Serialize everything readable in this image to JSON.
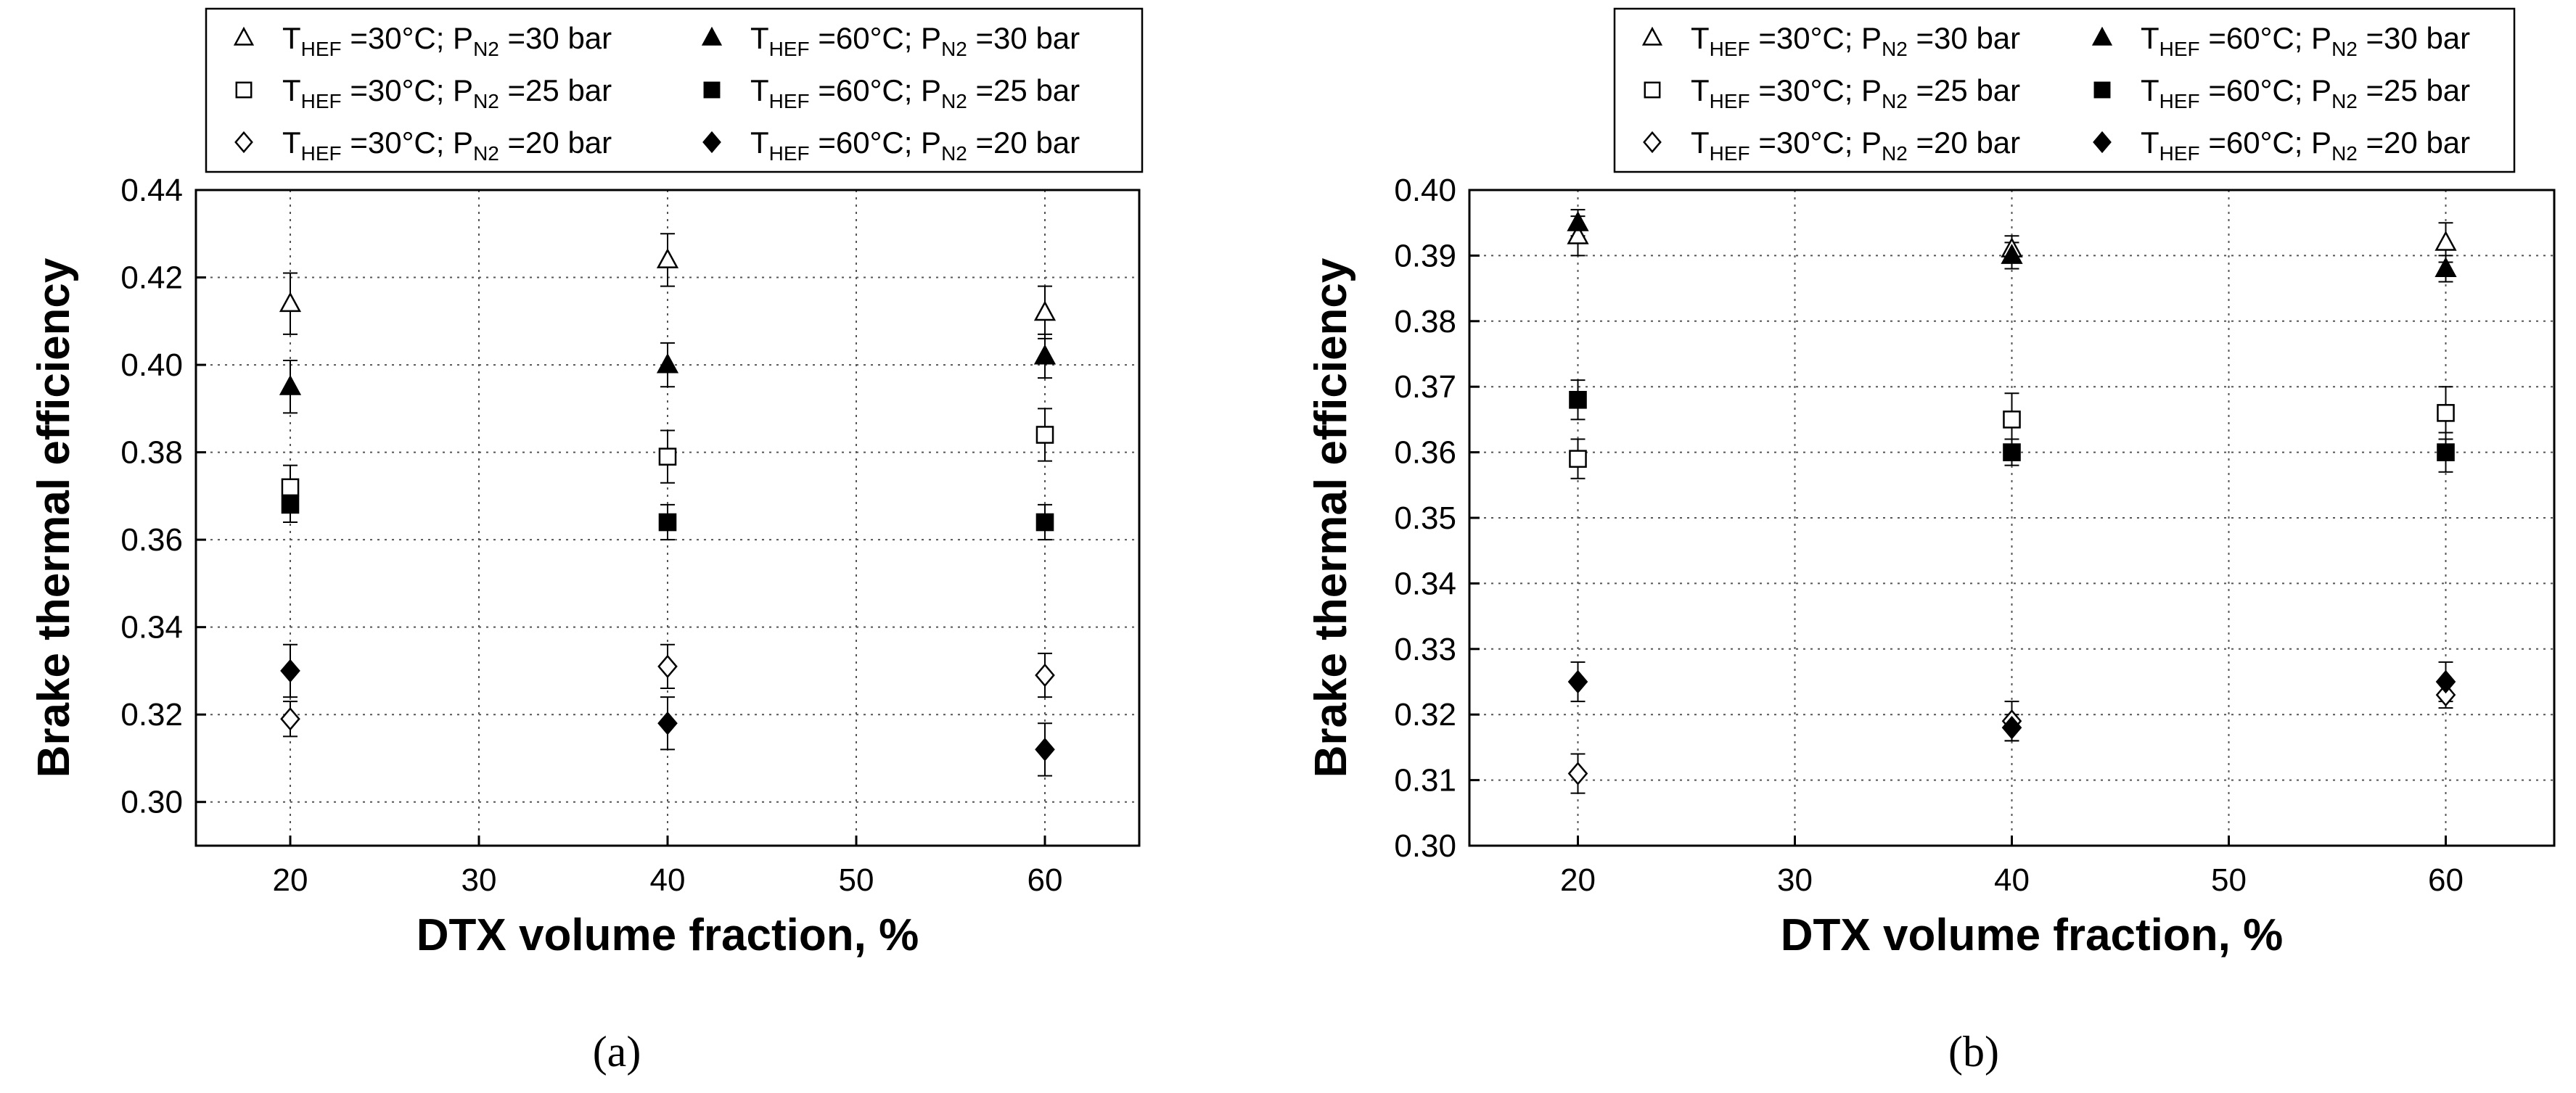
{
  "chart_data": [
    {
      "type": "scatter",
      "panel_label": "(a)",
      "xlabel": "DTX volume fraction, %",
      "ylabel": "Brake thermal efficiency",
      "xlim": [
        15,
        65
      ],
      "ylim": [
        0.29,
        0.44
      ],
      "xticks": [
        "20",
        "30",
        "40",
        "50",
        "60"
      ],
      "yticks": [
        "0.30",
        "0.32",
        "0.34",
        "0.36",
        "0.38",
        "0.40",
        "0.42",
        "0.44"
      ],
      "grid": true,
      "legend_position": "top",
      "x": [
        20,
        40,
        60
      ],
      "series": [
        {
          "name": "T_HEF =30°C; P_N2 =30 bar",
          "sub1": "HEF",
          "temp": "=30°C; P",
          "sub2": "N2",
          "pres": "=30 bar",
          "marker": "triangle",
          "filled": false,
          "values": [
            0.414,
            0.424,
            0.412
          ],
          "errors": [
            0.007,
            0.006,
            0.006
          ]
        },
        {
          "name": "T_HEF =60°C; P_N2 =30 bar",
          "sub1": "HEF",
          "temp": "=60°C; P",
          "sub2": "N2",
          "pres": "=30 bar",
          "marker": "triangle",
          "filled": true,
          "values": [
            0.395,
            0.4,
            0.402
          ],
          "errors": [
            0.006,
            0.005,
            0.005
          ]
        },
        {
          "name": "T_HEF =30°C; P_N2 =25 bar",
          "sub1": "HEF",
          "temp": "=30°C; P",
          "sub2": "N2",
          "pres": "=25 bar",
          "marker": "square",
          "filled": false,
          "values": [
            0.372,
            0.379,
            0.384
          ],
          "errors": [
            0.005,
            0.006,
            0.006
          ]
        },
        {
          "name": "T_HEF =60°C; P_N2 =25 bar",
          "sub1": "HEF",
          "temp": "=60°C; P",
          "sub2": "N2",
          "pres": "=25 bar",
          "marker": "square",
          "filled": true,
          "values": [
            0.368,
            0.364,
            0.364
          ],
          "errors": [
            0.004,
            0.004,
            0.004
          ]
        },
        {
          "name": "T_HEF =30°C; P_N2 =20 bar",
          "sub1": "HEF",
          "temp": "=30°C; P",
          "sub2": "N2",
          "pres": "=20 bar",
          "marker": "diamond",
          "filled": false,
          "values": [
            0.319,
            0.331,
            0.329
          ],
          "errors": [
            0.004,
            0.005,
            0.005
          ]
        },
        {
          "name": "T_HEF =60°C; P_N2 =20 bar",
          "sub1": "HEF",
          "temp": "=60°C; P",
          "sub2": "N2",
          "pres": "=20 bar",
          "marker": "diamond",
          "filled": true,
          "values": [
            0.33,
            0.318,
            0.312
          ],
          "errors": [
            0.006,
            0.006,
            0.006
          ]
        }
      ]
    },
    {
      "type": "scatter",
      "panel_label": "(b)",
      "xlabel": "DTX volume fraction, %",
      "ylabel": "Brake thermal efficiency",
      "xlim": [
        15,
        65
      ],
      "ylim": [
        0.3,
        0.4
      ],
      "xticks": [
        "20",
        "30",
        "40",
        "50",
        "60"
      ],
      "yticks": [
        "0.30",
        "0.31",
        "0.32",
        "0.33",
        "0.34",
        "0.35",
        "0.36",
        "0.37",
        "0.38",
        "0.39",
        "0.40"
      ],
      "grid": true,
      "legend_position": "top",
      "x": [
        20,
        40,
        60
      ],
      "series": [
        {
          "name": "T_HEF =30°C; P_N2 =30 bar",
          "sub1": "HEF",
          "temp": "=30°C; P",
          "sub2": "N2",
          "pres": "=30 bar",
          "marker": "triangle",
          "filled": false,
          "values": [
            0.393,
            0.391,
            0.392
          ],
          "errors": [
            0.003,
            0.002,
            0.003
          ]
        },
        {
          "name": "T_HEF =60°C; P_N2 =30 bar",
          "sub1": "HEF",
          "temp": "=60°C; P",
          "sub2": "N2",
          "pres": "=30 bar",
          "marker": "triangle",
          "filled": true,
          "values": [
            0.395,
            0.39,
            0.388
          ],
          "errors": [
            0.002,
            0.002,
            0.002
          ]
        },
        {
          "name": "T_HEF =30°C; P_N2 =25 bar",
          "sub1": "HEF",
          "temp": "=30°C; P",
          "sub2": "N2",
          "pres": "=25 bar",
          "marker": "square",
          "filled": false,
          "values": [
            0.359,
            0.365,
            0.366
          ],
          "errors": [
            0.003,
            0.004,
            0.004
          ]
        },
        {
          "name": "T_HEF =60°C; P_N2 =25 bar",
          "sub1": "HEF",
          "temp": "=60°C; P",
          "sub2": "N2",
          "pres": "=25 bar",
          "marker": "square",
          "filled": true,
          "values": [
            0.368,
            0.36,
            0.36
          ],
          "errors": [
            0.003,
            0.002,
            0.003
          ]
        },
        {
          "name": "T_HEF =30°C; P_N2 =20 bar",
          "sub1": "HEF",
          "temp": "=30°C; P",
          "sub2": "N2",
          "pres": "=20 bar",
          "marker": "diamond",
          "filled": false,
          "values": [
            0.311,
            0.319,
            0.323
          ],
          "errors": [
            0.003,
            0.003,
            0.002
          ]
        },
        {
          "name": "T_HEF =60°C; P_N2 =20 bar",
          "sub1": "HEF",
          "temp": "=60°C; P",
          "sub2": "N2",
          "pres": "=20 bar",
          "marker": "diamond",
          "filled": true,
          "values": [
            0.325,
            0.318,
            0.325
          ],
          "errors": [
            0.003,
            0.002,
            0.003
          ]
        }
      ]
    }
  ]
}
